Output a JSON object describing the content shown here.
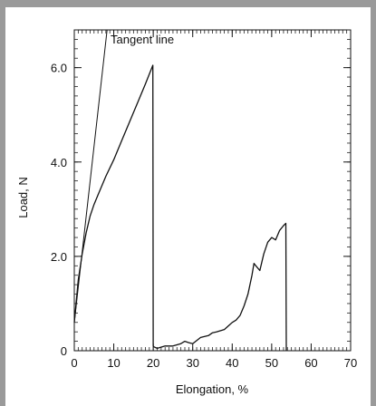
{
  "chart_data": {
    "type": "line",
    "xlabel": "Elongation, %",
    "ylabel": "Load, N",
    "xlim": [
      0,
      70
    ],
    "ylim": [
      0,
      6.8
    ],
    "x_ticks": [
      0,
      10,
      20,
      30,
      40,
      50,
      60,
      70
    ],
    "y_ticks": [
      0,
      2.0,
      4.0,
      6.0
    ],
    "y_tick_labels": [
      "0",
      "2.0",
      "4.0",
      "6.0"
    ],
    "grid": false,
    "annotations": [
      {
        "text": "Tangent line"
      }
    ],
    "series": [
      {
        "line_color": "#111111",
        "x": [
          0,
          1,
          2,
          3,
          4,
          5,
          6,
          8,
          10,
          12,
          14,
          16,
          18,
          19.9,
          20.0,
          20.2,
          21,
          23,
          25,
          27,
          28,
          29,
          30,
          32,
          34,
          35,
          36,
          38,
          40,
          41,
          42,
          43,
          44,
          45,
          45.5,
          46,
          47,
          48,
          49,
          50,
          51,
          52,
          53,
          53.6,
          53.7
        ],
        "y": [
          0.6,
          1.5,
          2.05,
          2.5,
          2.85,
          3.1,
          3.3,
          3.7,
          4.05,
          4.45,
          4.85,
          5.25,
          5.65,
          6.05,
          0.1,
          0.08,
          0.05,
          0.1,
          0.1,
          0.15,
          0.2,
          0.17,
          0.15,
          0.28,
          0.32,
          0.38,
          0.4,
          0.45,
          0.6,
          0.65,
          0.75,
          0.95,
          1.2,
          1.6,
          1.85,
          1.8,
          1.7,
          2.05,
          2.3,
          2.4,
          2.35,
          2.55,
          2.65,
          2.7,
          0.0
        ]
      },
      {
        "line_color": "#111111",
        "x": [
          0,
          8.3
        ],
        "y": [
          0.6,
          6.8
        ]
      }
    ]
  }
}
